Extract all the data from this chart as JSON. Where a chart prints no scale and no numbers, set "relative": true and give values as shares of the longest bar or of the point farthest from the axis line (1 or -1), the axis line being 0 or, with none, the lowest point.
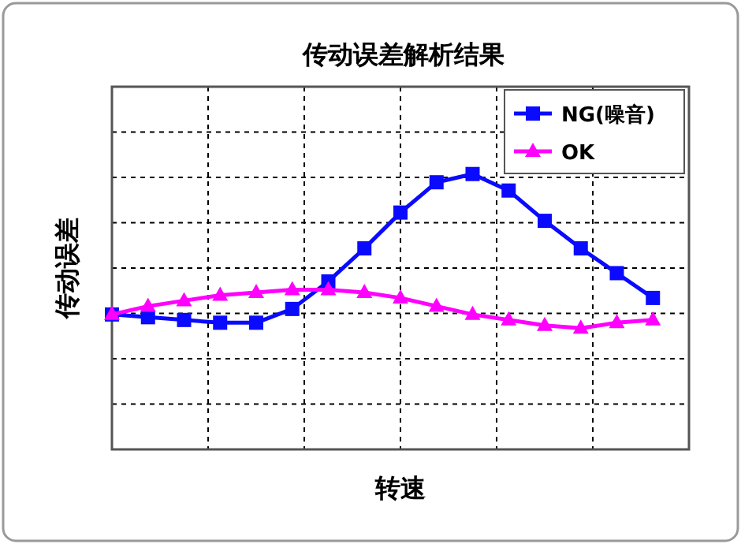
{
  "chart_data": {
    "type": "line",
    "title": "传动误差解析结果",
    "xlabel": "转速",
    "ylabel": "传动误差",
    "relative": true,
    "grid": true,
    "legend": "top right",
    "line_style": "solid",
    "categories": [
      null,
      null,
      null,
      null,
      null,
      null,
      null,
      null,
      null,
      null,
      null,
      null,
      null,
      null,
      null,
      null
    ],
    "series": [
      {
        "name": "NG(噪音)",
        "color": "#0a0aff",
        "marker": "square",
        "values": [
          0.49,
          0.48,
          0.47,
          0.46,
          0.46,
          0.51,
          0.61,
          0.73,
          0.86,
          0.97,
          1,
          0.94,
          0.83,
          0.73,
          0.64,
          0.55
        ]
      },
      {
        "name": "OK",
        "color": "#ff00ff",
        "marker": "triangle",
        "values": [
          0.49,
          0.52,
          0.54,
          0.56,
          0.57,
          0.58,
          0.58,
          0.57,
          0.55,
          0.52,
          0.49,
          0.47,
          0.45,
          0.44,
          0.46,
          0.47
        ]
      }
    ]
  }
}
